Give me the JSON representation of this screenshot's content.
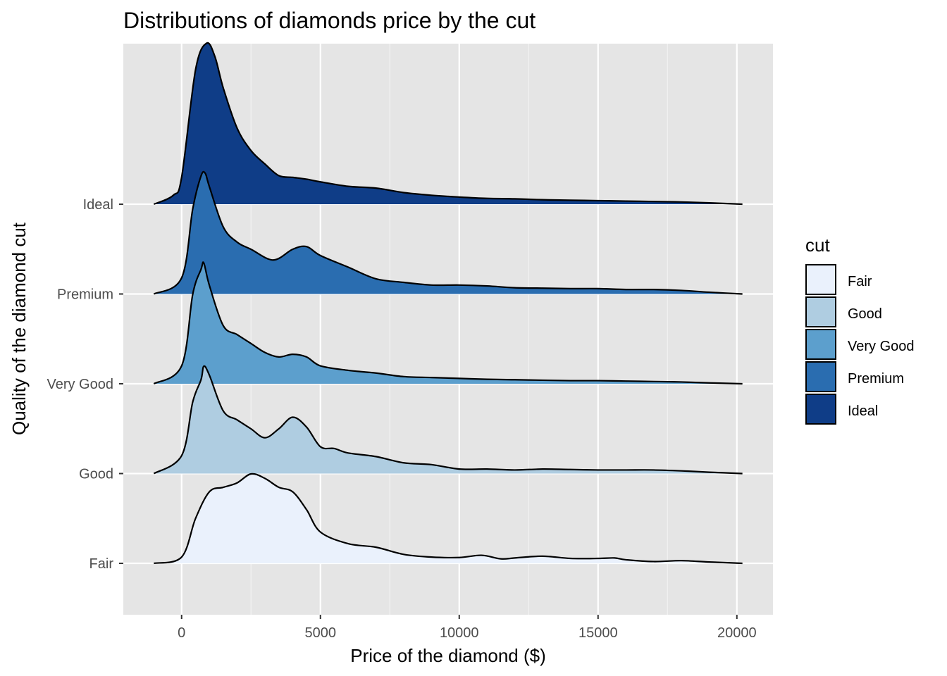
{
  "chart_data": {
    "type": "ridgeline",
    "title": "Distributions of diamonds price by the cut",
    "xlabel": "Price of the diamond ($)",
    "ylabel": "Quality of the diamond cut",
    "xlim": [
      -2100,
      21300
    ],
    "x_ticks": [
      0,
      5000,
      10000,
      15000,
      20000
    ],
    "categories": [
      "Fair",
      "Good",
      "Very Good",
      "Premium",
      "Ideal"
    ],
    "grid": true,
    "legend": {
      "title": "cut",
      "position": "right",
      "items": [
        {
          "label": "Fair",
          "color": "#eaf1fc"
        },
        {
          "label": "Good",
          "color": "#afcde1"
        },
        {
          "label": "Very Good",
          "color": "#5c9fcd"
        },
        {
          "label": "Premium",
          "color": "#2a6db0"
        },
        {
          "label": "Ideal",
          "color": "#0f3d87"
        }
      ]
    },
    "series": [
      {
        "name": "Fair",
        "color": "#eaf1fc",
        "points": [
          [
            -1000,
            0
          ],
          [
            0,
            0.07
          ],
          [
            500,
            0.5
          ],
          [
            1000,
            0.8
          ],
          [
            1500,
            0.85
          ],
          [
            2000,
            0.9
          ],
          [
            2500,
            1.0
          ],
          [
            3000,
            0.95
          ],
          [
            3500,
            0.85
          ],
          [
            4000,
            0.8
          ],
          [
            4500,
            0.6
          ],
          [
            5000,
            0.35
          ],
          [
            6000,
            0.22
          ],
          [
            7000,
            0.18
          ],
          [
            8000,
            0.1
          ],
          [
            9000,
            0.07
          ],
          [
            10000,
            0.065
          ],
          [
            10800,
            0.09
          ],
          [
            11500,
            0.05
          ],
          [
            12000,
            0.06
          ],
          [
            13000,
            0.08
          ],
          [
            14000,
            0.055
          ],
          [
            15000,
            0.055
          ],
          [
            15600,
            0.06
          ],
          [
            16000,
            0.04
          ],
          [
            17000,
            0.02
          ],
          [
            18000,
            0.03
          ],
          [
            19000,
            0.015
          ],
          [
            20200,
            0
          ]
        ]
      },
      {
        "name": "Good",
        "color": "#afcde1",
        "points": [
          [
            -1000,
            0
          ],
          [
            0,
            0.2
          ],
          [
            400,
            0.8
          ],
          [
            700,
            1.05
          ],
          [
            800,
            1.2
          ],
          [
            1000,
            1.1
          ],
          [
            1500,
            0.7
          ],
          [
            2000,
            0.6
          ],
          [
            2500,
            0.5
          ],
          [
            3000,
            0.4
          ],
          [
            3500,
            0.5
          ],
          [
            4000,
            0.63
          ],
          [
            4500,
            0.52
          ],
          [
            5000,
            0.3
          ],
          [
            5500,
            0.28
          ],
          [
            6000,
            0.23
          ],
          [
            7000,
            0.19
          ],
          [
            8000,
            0.12
          ],
          [
            9000,
            0.1
          ],
          [
            10000,
            0.05
          ],
          [
            11000,
            0.05
          ],
          [
            12000,
            0.04
          ],
          [
            13000,
            0.05
          ],
          [
            14000,
            0.045
          ],
          [
            15000,
            0.04
          ],
          [
            16000,
            0.04
          ],
          [
            17000,
            0.04
          ],
          [
            18000,
            0.03
          ],
          [
            19000,
            0.015
          ],
          [
            20200,
            0
          ]
        ]
      },
      {
        "name": "Very Good",
        "color": "#5c9fcd",
        "points": [
          [
            -1000,
            0
          ],
          [
            0,
            0.2
          ],
          [
            400,
            1.0
          ],
          [
            700,
            1.28
          ],
          [
            800,
            1.35
          ],
          [
            1000,
            1.1
          ],
          [
            1500,
            0.65
          ],
          [
            2000,
            0.55
          ],
          [
            2500,
            0.45
          ],
          [
            3000,
            0.35
          ],
          [
            3500,
            0.3
          ],
          [
            4000,
            0.33
          ],
          [
            4500,
            0.3
          ],
          [
            5000,
            0.2
          ],
          [
            6000,
            0.15
          ],
          [
            7000,
            0.12
          ],
          [
            8000,
            0.08
          ],
          [
            9000,
            0.07
          ],
          [
            10000,
            0.06
          ],
          [
            11000,
            0.05
          ],
          [
            12000,
            0.045
          ],
          [
            13000,
            0.04
          ],
          [
            14000,
            0.035
          ],
          [
            15000,
            0.035
          ],
          [
            16000,
            0.03
          ],
          [
            17000,
            0.025
          ],
          [
            18000,
            0.02
          ],
          [
            19000,
            0.01
          ],
          [
            20200,
            0
          ]
        ]
      },
      {
        "name": "Premium",
        "color": "#2a6db0",
        "points": [
          [
            -1000,
            0
          ],
          [
            0,
            0.18
          ],
          [
            400,
            0.95
          ],
          [
            700,
            1.32
          ],
          [
            850,
            1.35
          ],
          [
            1000,
            1.2
          ],
          [
            1500,
            0.75
          ],
          [
            2000,
            0.58
          ],
          [
            2500,
            0.5
          ],
          [
            3300,
            0.38
          ],
          [
            4000,
            0.5
          ],
          [
            4500,
            0.53
          ],
          [
            5000,
            0.43
          ],
          [
            6000,
            0.3
          ],
          [
            7000,
            0.17
          ],
          [
            8000,
            0.13
          ],
          [
            9000,
            0.1
          ],
          [
            10000,
            0.1
          ],
          [
            11000,
            0.09
          ],
          [
            12000,
            0.07
          ],
          [
            13000,
            0.065
          ],
          [
            14000,
            0.06
          ],
          [
            15000,
            0.06
          ],
          [
            16000,
            0.05
          ],
          [
            17000,
            0.05
          ],
          [
            18000,
            0.04
          ],
          [
            19000,
            0.02
          ],
          [
            20200,
            0
          ]
        ]
      },
      {
        "name": "Ideal",
        "color": "#0f3d87",
        "points": [
          [
            -1000,
            0
          ],
          [
            -300,
            0.1
          ],
          [
            0,
            0.3
          ],
          [
            500,
            1.5
          ],
          [
            900,
            1.8
          ],
          [
            1200,
            1.65
          ],
          [
            1500,
            1.3
          ],
          [
            2000,
            0.85
          ],
          [
            2500,
            0.6
          ],
          [
            3000,
            0.45
          ],
          [
            3500,
            0.32
          ],
          [
            4000,
            0.3
          ],
          [
            4500,
            0.28
          ],
          [
            5000,
            0.25
          ],
          [
            6000,
            0.2
          ],
          [
            7000,
            0.18
          ],
          [
            8000,
            0.13
          ],
          [
            9000,
            0.1
          ],
          [
            10000,
            0.08
          ],
          [
            11000,
            0.065
          ],
          [
            12000,
            0.06
          ],
          [
            13000,
            0.05
          ],
          [
            14000,
            0.045
          ],
          [
            15000,
            0.04
          ],
          [
            16000,
            0.035
          ],
          [
            17000,
            0.03
          ],
          [
            18000,
            0.025
          ],
          [
            19000,
            0.015
          ],
          [
            20200,
            0
          ]
        ]
      }
    ]
  }
}
